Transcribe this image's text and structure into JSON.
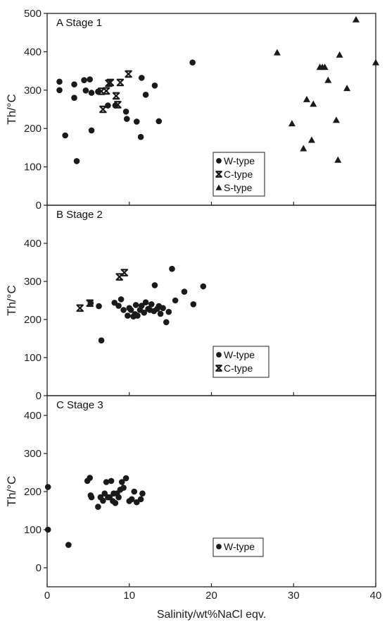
{
  "chart_data": [
    {
      "type": "scatter",
      "panel_label": "A",
      "title": "Stage 1",
      "xlabel": "",
      "ylabel": "Th/°C",
      "xlim": [
        0,
        40
      ],
      "ylim": [
        0,
        500
      ],
      "yticks": [
        0,
        100,
        200,
        300,
        400,
        500
      ],
      "legend_position": "bottom-right",
      "series": [
        {
          "name": "W-type",
          "marker": "circle",
          "x": [
            1.5,
            1.5,
            2.2,
            3.3,
            3.3,
            3.6,
            4.5,
            4.7,
            5.2,
            5.4,
            5.4,
            6.2,
            7.4,
            8.3,
            9.6,
            9.7,
            10.9,
            11.4,
            11.5,
            12.0,
            13.1,
            13.6,
            17.7
          ],
          "y": [
            322,
            300,
            182,
            315,
            280,
            115,
            326,
            299,
            328,
            293,
            195,
            296,
            260,
            260,
            244,
            225,
            218,
            178,
            332,
            288,
            312,
            219,
            372
          ]
        },
        {
          "name": "C-type",
          "marker": "bowtie",
          "x": [
            6.6,
            6.8,
            7.2,
            7.5,
            7.7,
            8.4,
            8.6,
            8.9,
            9.9
          ],
          "y": [
            297,
            250,
            298,
            318,
            320,
            285,
            262,
            320,
            342
          ]
        },
        {
          "name": "S-type",
          "marker": "triangle",
          "x": [
            28.0,
            29.8,
            31.2,
            31.6,
            32.2,
            32.4,
            33.2,
            33.5,
            33.8,
            34.2,
            35.2,
            35.4,
            35.6,
            36.5,
            37.6,
            40.0
          ],
          "y": [
            398,
            213,
            148,
            276,
            170,
            264,
            360,
            360,
            360,
            326,
            222,
            118,
            392,
            305,
            484,
            372
          ]
        }
      ]
    },
    {
      "type": "scatter",
      "panel_label": "B",
      "title": "Stage 2",
      "xlabel": "",
      "ylabel": "Th/°C",
      "xlim": [
        0,
        40
      ],
      "ylim": [
        0,
        500
      ],
      "yticks": [
        0,
        100,
        200,
        300,
        400
      ],
      "legend_position": "bottom-right",
      "series": [
        {
          "name": "W-type",
          "marker": "circle",
          "x": [
            5.3,
            6.3,
            6.6,
            8.2,
            8.7,
            9.0,
            9.3,
            9.8,
            10.0,
            10.2,
            10.5,
            10.7,
            10.8,
            11.0,
            11.3,
            11.5,
            11.8,
            12.0,
            12.3,
            12.5,
            12.7,
            13.0,
            13.1,
            13.4,
            13.6,
            13.8,
            14.1,
            14.5,
            14.8,
            15.2,
            15.6,
            16.7,
            17.8,
            19.0
          ],
          "y": [
            243,
            235,
            145,
            244,
            236,
            253,
            225,
            210,
            230,
            225,
            208,
            214,
            238,
            210,
            225,
            236,
            218,
            245,
            228,
            225,
            240,
            222,
            290,
            228,
            235,
            215,
            230,
            193,
            220,
            333,
            250,
            273,
            240,
            287
          ]
        },
        {
          "name": "C-type",
          "marker": "bowtie",
          "x": [
            4.0,
            5.2,
            8.8,
            9.4
          ],
          "y": [
            230,
            243,
            312,
            323
          ]
        }
      ]
    },
    {
      "type": "scatter",
      "panel_label": "C",
      "title": "Stage 3",
      "xlabel": "Salinity/wt%NaCl eqv.",
      "ylabel": "Th/°C",
      "xlim": [
        0,
        40
      ],
      "ylim": [
        -30,
        430
      ],
      "yticks": [
        0,
        100,
        200,
        300,
        400
      ],
      "xticks": [
        0,
        10,
        20,
        30,
        40
      ],
      "legend_position": "bottom-right",
      "series": [
        {
          "name": "W-type",
          "marker": "circle",
          "x": [
            0.1,
            0.1,
            2.6,
            4.9,
            5.2,
            5.3,
            5.4,
            6.2,
            6.5,
            6.8,
            7.0,
            7.2,
            7.4,
            7.6,
            7.8,
            8.0,
            8.1,
            8.3,
            8.5,
            8.7,
            8.9,
            9.1,
            9.3,
            9.6,
            10.0,
            10.3,
            10.6,
            10.9,
            11.4,
            11.6
          ],
          "y": [
            212,
            100,
            60,
            228,
            236,
            190,
            185,
            160,
            185,
            176,
            195,
            225,
            185,
            185,
            228,
            175,
            195,
            170,
            195,
            185,
            205,
            225,
            210,
            235,
            175,
            180,
            200,
            172,
            180,
            195
          ]
        }
      ]
    }
  ]
}
